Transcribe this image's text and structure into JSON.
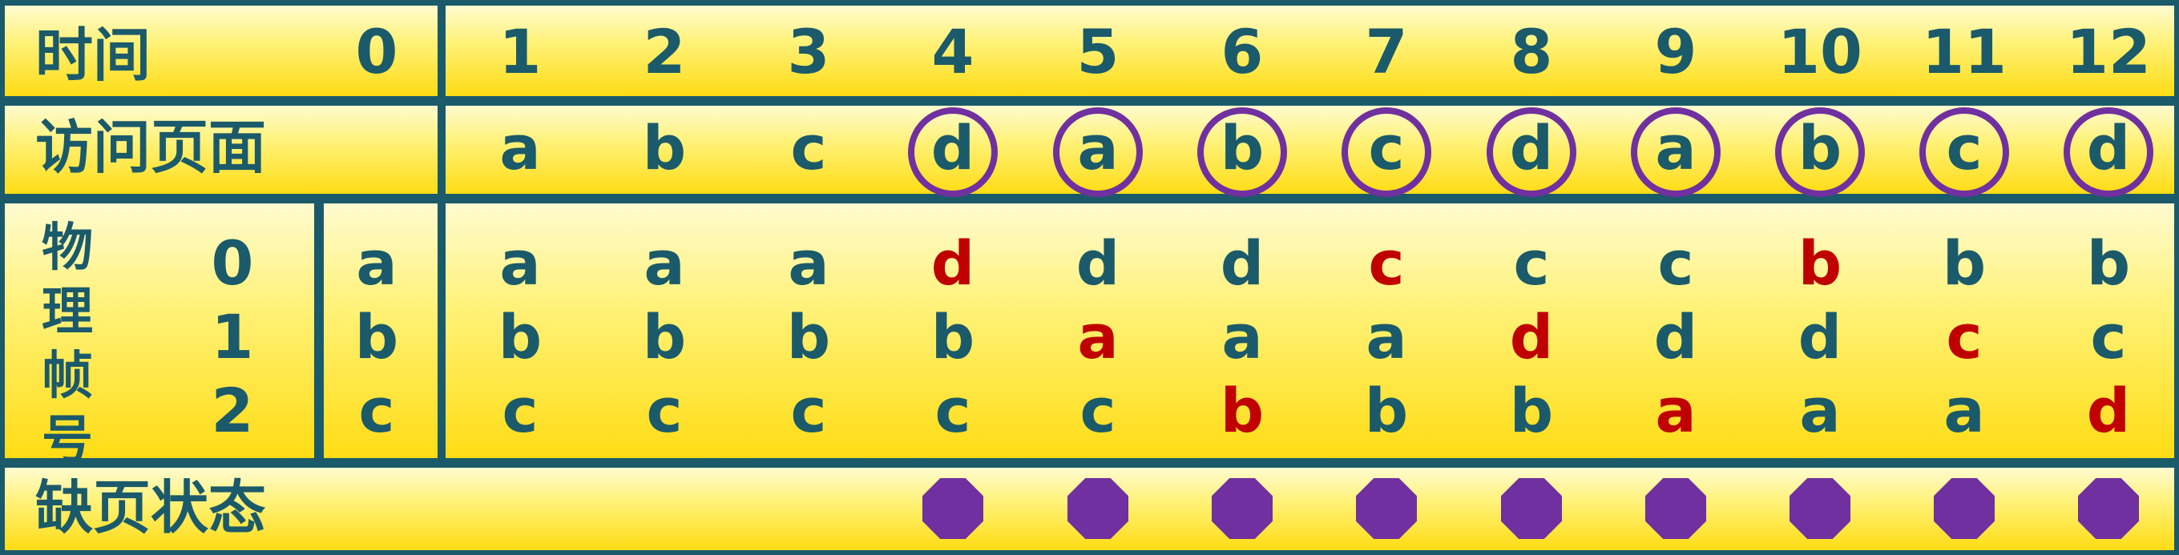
{
  "labels": {
    "time": "时间",
    "access": "访问页面",
    "frames_chars": [
      "物",
      "理",
      "帧",
      "号"
    ],
    "fault": "缺页状态"
  },
  "time": [
    "0",
    "1",
    "2",
    "3",
    "4",
    "5",
    "6",
    "7",
    "8",
    "9",
    "10",
    "11",
    "12"
  ],
  "access": [
    "",
    "a",
    "b",
    "c",
    "d",
    "a",
    "b",
    "c",
    "d",
    "a",
    "b",
    "c",
    "d"
  ],
  "frame_ids": [
    "0",
    "1",
    "2"
  ],
  "frames": [
    [
      "a",
      "a",
      "a",
      "a",
      "d",
      "d",
      "d",
      "c",
      "c",
      "c",
      "b",
      "b",
      "b"
    ],
    [
      "b",
      "b",
      "b",
      "b",
      "b",
      "a",
      "a",
      "a",
      "d",
      "d",
      "d",
      "c",
      "c"
    ],
    [
      "c",
      "c",
      "c",
      "c",
      "c",
      "c",
      "b",
      "b",
      "b",
      "a",
      "a",
      "a",
      "d"
    ]
  ],
  "replaced": [
    [
      false,
      false,
      false,
      false,
      true,
      false,
      false,
      true,
      false,
      false,
      true,
      false,
      false
    ],
    [
      false,
      false,
      false,
      false,
      false,
      true,
      false,
      false,
      true,
      false,
      false,
      true,
      false
    ],
    [
      false,
      false,
      false,
      false,
      false,
      false,
      true,
      false,
      false,
      true,
      false,
      false,
      true
    ]
  ],
  "fault": [
    false,
    false,
    false,
    false,
    true,
    true,
    true,
    true,
    true,
    true,
    true,
    true,
    true
  ],
  "colors": {
    "border": "#1b5a6a",
    "text": "#1b5a6a",
    "replaced": "#c00000",
    "fault": "#7030a0"
  }
}
